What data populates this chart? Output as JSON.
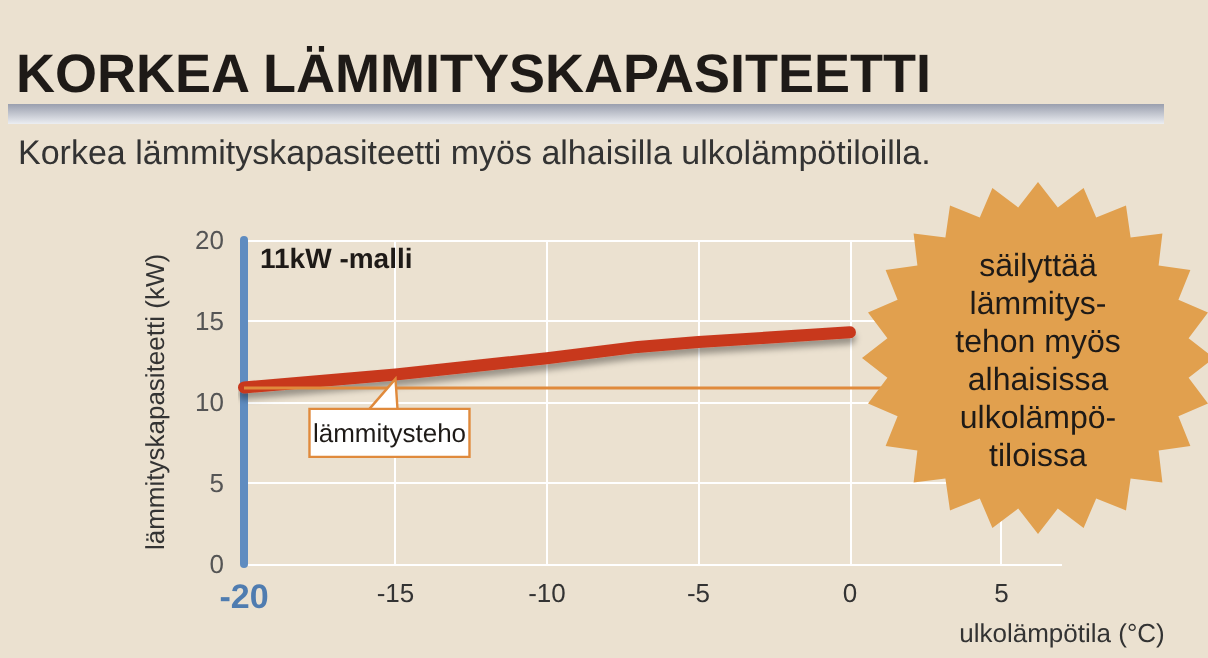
{
  "chart_data": {
    "type": "line",
    "title": "KORKEA LÄMMITYSKAPASITEETTI",
    "subtitle": "Korkea lämmityskapasiteetti myös alhaisilla ulkolämpötiloilla.",
    "xlabel": "ulkolämpötila (°C)",
    "ylabel": "lämmityskapasiteetti (kW)",
    "x": [
      -20,
      -15,
      -10,
      -7,
      -5,
      0
    ],
    "series": [
      {
        "name": "lämmitysteho",
        "color": "#c8391f",
        "values": [
          10.9,
          11.7,
          12.7,
          13.4,
          13.7,
          14.3
        ]
      }
    ],
    "xlim": [
      -20,
      7
    ],
    "xticks": [
      -20,
      -15,
      -10,
      -5,
      0,
      5
    ],
    "ylim": [
      0,
      20
    ],
    "yticks": [
      0,
      5,
      10,
      15,
      20
    ],
    "ref_lines": [
      {
        "axis": "y",
        "value": 10.9,
        "color": "#e08a3c"
      }
    ],
    "annotations": [
      "11kW -malli",
      "säilyttää lämmitys- tehon myös alhaisissa ulkolämpö- tiloissa"
    ],
    "grid": true,
    "legend": false,
    "marker": "none",
    "line_style": "solid"
  }
}
